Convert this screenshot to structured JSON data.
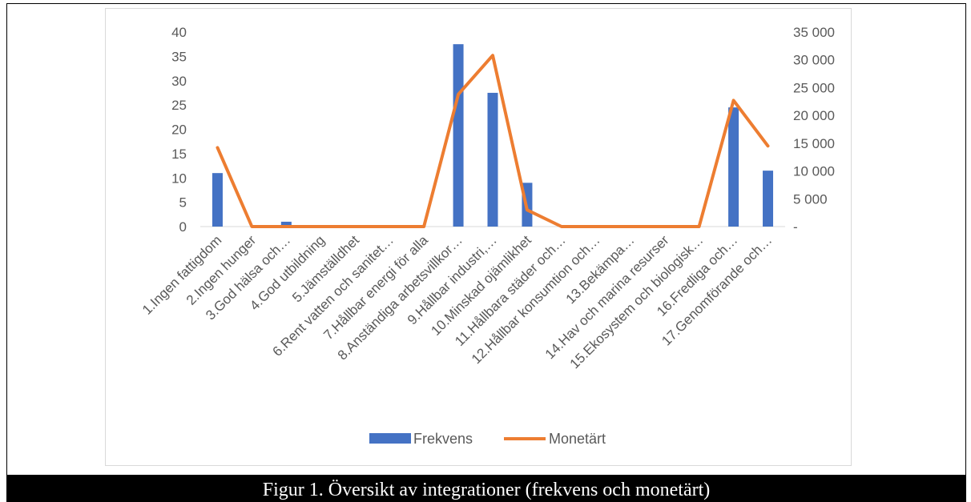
{
  "caption": "Figur 1. Översikt av integrationer (frekvens och monetärt)",
  "colors": {
    "bars": "#4472c4",
    "line": "#ed7d31",
    "grid": "#d9d9d9",
    "text": "#595959"
  },
  "chart_data": {
    "type": "bar",
    "combo": "bar-line-dual-axis",
    "title": "",
    "categories": [
      "1.Ingen fattigdom",
      "2.Ingen hunger",
      "3.God hälsa och…",
      "4.God utbildning",
      "5.Jämställdhet",
      "6.Rent vatten och sanitet…",
      "7.Hållbar energi för alla",
      "8.Anständiga arbetsvillkor…",
      "9.Hållbar industri,…",
      "10.Minskad ojämlikhet",
      "11.Hållbara städer och…",
      "12.Hållbar konsumtion och…",
      "13.Bekämpa…",
      "14.Hav och marina resurser",
      "15.Ekosystem och biologisk…",
      "16.Fredliga och…",
      "17.Genomförande och…"
    ],
    "series": [
      {
        "name": "Frekvens",
        "type": "bar",
        "axis": "left",
        "values": [
          11,
          0,
          1,
          0,
          0,
          0,
          0,
          37.5,
          27.5,
          9,
          0,
          0,
          0,
          0,
          0,
          24.5,
          11.5
        ]
      },
      {
        "name": "Monetärt",
        "type": "line",
        "axis": "right",
        "values": [
          14200,
          0,
          0,
          0,
          0,
          0,
          0,
          23800,
          30800,
          3000,
          0,
          0,
          0,
          0,
          0,
          22700,
          14500
        ]
      }
    ],
    "y_left": {
      "ylim": [
        0,
        40
      ],
      "ticks": [
        "0",
        "5",
        "10",
        "15",
        "20",
        "25",
        "30",
        "35",
        "40"
      ]
    },
    "y_right": {
      "ylim": [
        0,
        35000
      ],
      "ticks": [
        "-",
        "5 000",
        "10 000",
        "15 000",
        "20 000",
        "25 000",
        "30 000",
        "35 000"
      ]
    },
    "grid": false,
    "legend_position": "bottom"
  }
}
